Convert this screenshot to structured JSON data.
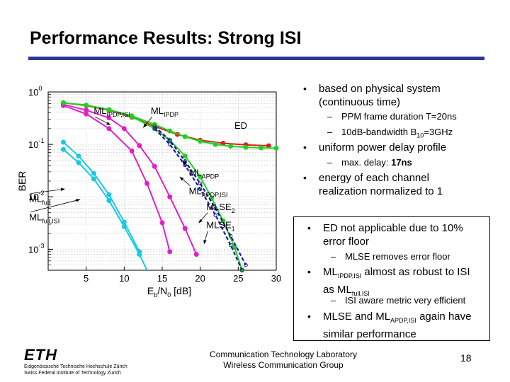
{
  "slide": {
    "title": "Performance Results: Strong ISI",
    "footer_line1": "Communication Technology Laboratory",
    "footer_line2": "Wireless Communication Group",
    "page_number": "18",
    "logo_text": "ETH",
    "logo_sub1": "Eidgenössische Technische Hochschule Zürich",
    "logo_sub2": "Swiss Federal Institute of Technology Zurich"
  },
  "bullets": {
    "b1": "based on physical system (continuous time)",
    "b1_sub1": "PPM frame duration T=20ns",
    "b1_sub2_pre": "10dB-bandwidth B",
    "b1_sub2_subscript": "10",
    "b1_sub2_post": "=3GHz",
    "b2": "uniform power delay profile",
    "b2_sub1_pre": "max. delay: ",
    "b2_sub1_bold": "17ns",
    "b3": "energy of each channel realization normalized to 1",
    "b4": "ED not applicable due to 10% error floor",
    "b4_sub1": "MLSE removes error floor",
    "b5_pre": "ML",
    "b5_sub_a": "IPDP,ISI",
    "b5_mid": " almost as robust to ISI as ML",
    "b5_sub_b": "full,ISI",
    "b5_sub1": "ISI aware metric very efficient",
    "b6_pre": "MLSE and ML",
    "b6_sub": "APDP,ISI",
    "b6_post": " again have similar performance"
  },
  "colors": {
    "title_rule": "#2b3a93",
    "ML_full": "#19c9e6",
    "ML_IPDP": "#e020c8",
    "ED": "#e41b1b",
    "ML_APDP": "#22d022",
    "MLSE": "#1a1a9a"
  },
  "chart_data": {
    "type": "line",
    "xlabel_pre": "E",
    "xlabel_sub_b": "b",
    "xlabel_mid": "/N",
    "xlabel_sub_0": "0",
    "xlabel_post": " [dB]",
    "ylabel": "BER",
    "xlim": [
      0,
      30
    ],
    "ylim_log10": [
      -3.4,
      0
    ],
    "y_scale": "log",
    "grid": true,
    "x_ticks": [
      5,
      10,
      15,
      20,
      25,
      30
    ],
    "y_ticks": [
      {
        "base": "10",
        "exp": "0",
        "value": 0
      },
      {
        "base": "10",
        "exp": "-1",
        "value": -1
      },
      {
        "base": "10",
        "exp": "-2",
        "value": -2
      },
      {
        "base": "10",
        "exp": "-3",
        "value": -3
      }
    ],
    "series": [
      {
        "name": "ML_full",
        "color": "cyan",
        "dash": false,
        "x": [
          2,
          4,
          6,
          8,
          10,
          12,
          14
        ],
        "y": [
          0.08,
          0.045,
          0.022,
          0.0085,
          0.0027,
          0.0008,
          0.0002
        ]
      },
      {
        "name": "ML_full,ISI",
        "color": "cyan",
        "dash": false,
        "x": [
          2,
          4,
          6,
          8,
          10,
          12
        ],
        "y": [
          0.11,
          0.06,
          0.028,
          0.011,
          0.0033,
          0.0009
        ]
      },
      {
        "name": "ML_IPDP",
        "color": "magenta",
        "dash": false,
        "x": [
          2,
          5,
          8,
          11,
          13,
          15,
          16
        ],
        "y": [
          0.55,
          0.38,
          0.2,
          0.075,
          0.018,
          0.0032,
          0.0009
        ]
      },
      {
        "name": "ML_IPDP,ISI",
        "color": "magenta",
        "dash": false,
        "x": [
          2,
          5,
          8,
          10,
          12,
          14,
          16,
          18,
          19.5
        ],
        "y": [
          0.58,
          0.45,
          0.32,
          0.2,
          0.095,
          0.038,
          0.01,
          0.0025,
          0.0008
        ]
      },
      {
        "name": "ED",
        "color": "red",
        "dash": false,
        "x": [
          2,
          5,
          8,
          11,
          14,
          17,
          20,
          23,
          26,
          29
        ],
        "y": [
          0.62,
          0.55,
          0.45,
          0.33,
          0.22,
          0.155,
          0.12,
          0.105,
          0.098,
          0.094
        ]
      },
      {
        "name": "ML_APDP",
        "color": "green",
        "dash": false,
        "x": [
          2,
          5,
          8,
          11,
          14,
          16,
          18,
          20,
          22,
          24,
          26,
          28,
          30
        ],
        "y": [
          0.62,
          0.56,
          0.46,
          0.35,
          0.24,
          0.18,
          0.14,
          0.115,
          0.1,
          0.092,
          0.088,
          0.086,
          0.085
        ]
      },
      {
        "name": "ML_APDP,ISI",
        "color": "green",
        "dash": false,
        "x": [
          2,
          5,
          8,
          11,
          14,
          16,
          18,
          20,
          21.5,
          23,
          24.5,
          25.5
        ],
        "y": [
          0.62,
          0.56,
          0.46,
          0.34,
          0.2,
          0.12,
          0.06,
          0.024,
          0.0095,
          0.0035,
          0.0011,
          0.0004
        ]
      },
      {
        "name": "MLSE_2",
        "color": "navy",
        "dash": true,
        "x": [
          14,
          16,
          18,
          20,
          22,
          24,
          25.5
        ],
        "y": [
          0.2,
          0.1,
          0.04,
          0.014,
          0.0045,
          0.0012,
          0.0004
        ]
      },
      {
        "name": "MLSE_1",
        "color": "navy",
        "dash": true,
        "x": [
          14,
          16,
          18,
          20,
          22,
          24,
          26
        ],
        "y": [
          0.22,
          0.12,
          0.048,
          0.018,
          0.006,
          0.0018,
          0.0005
        ]
      }
    ],
    "annotations": [
      {
        "base": "ML",
        "sub": "IPDP,ISI",
        "x": 6,
        "logy": -0.42,
        "ax": 8.2,
        "alogy": -0.63
      },
      {
        "base": "ML",
        "sub": "IPDP",
        "x": 13.5,
        "logy": -0.42,
        "ax": 12.5,
        "alogy": -0.68
      },
      {
        "base": "ED",
        "sub": "",
        "x": 24.5,
        "logy": -0.7,
        "ax": 0,
        "alogy": 0
      },
      {
        "base": "ML",
        "sub": "APDP",
        "x": 18.5,
        "logy": -1.6,
        "ax": 17.6,
        "alogy": -1.32
      },
      {
        "base": "ML",
        "sub": "APDP,ISI",
        "x": 18.5,
        "logy": -1.95,
        "ax": 17.3,
        "alogy": -1.62
      },
      {
        "base": "ML",
        "sub": "full",
        "x": -2.5,
        "logy": -2.1,
        "ax": 2.2,
        "alogy": -1.85
      },
      {
        "base": "ML",
        "sub": "full,ISI",
        "x": -2.5,
        "logy": -2.45,
        "ax": 4.2,
        "alogy": -2.05
      },
      {
        "base": "MLSE",
        "sub": "2",
        "x": 20.8,
        "logy": -2.25,
        "ax": 19.8,
        "alogy": -2.5
      },
      {
        "base": "MLSE",
        "sub": "1",
        "x": 20.8,
        "logy": -2.6,
        "ax": 20.5,
        "alogy": -2.9
      }
    ]
  }
}
